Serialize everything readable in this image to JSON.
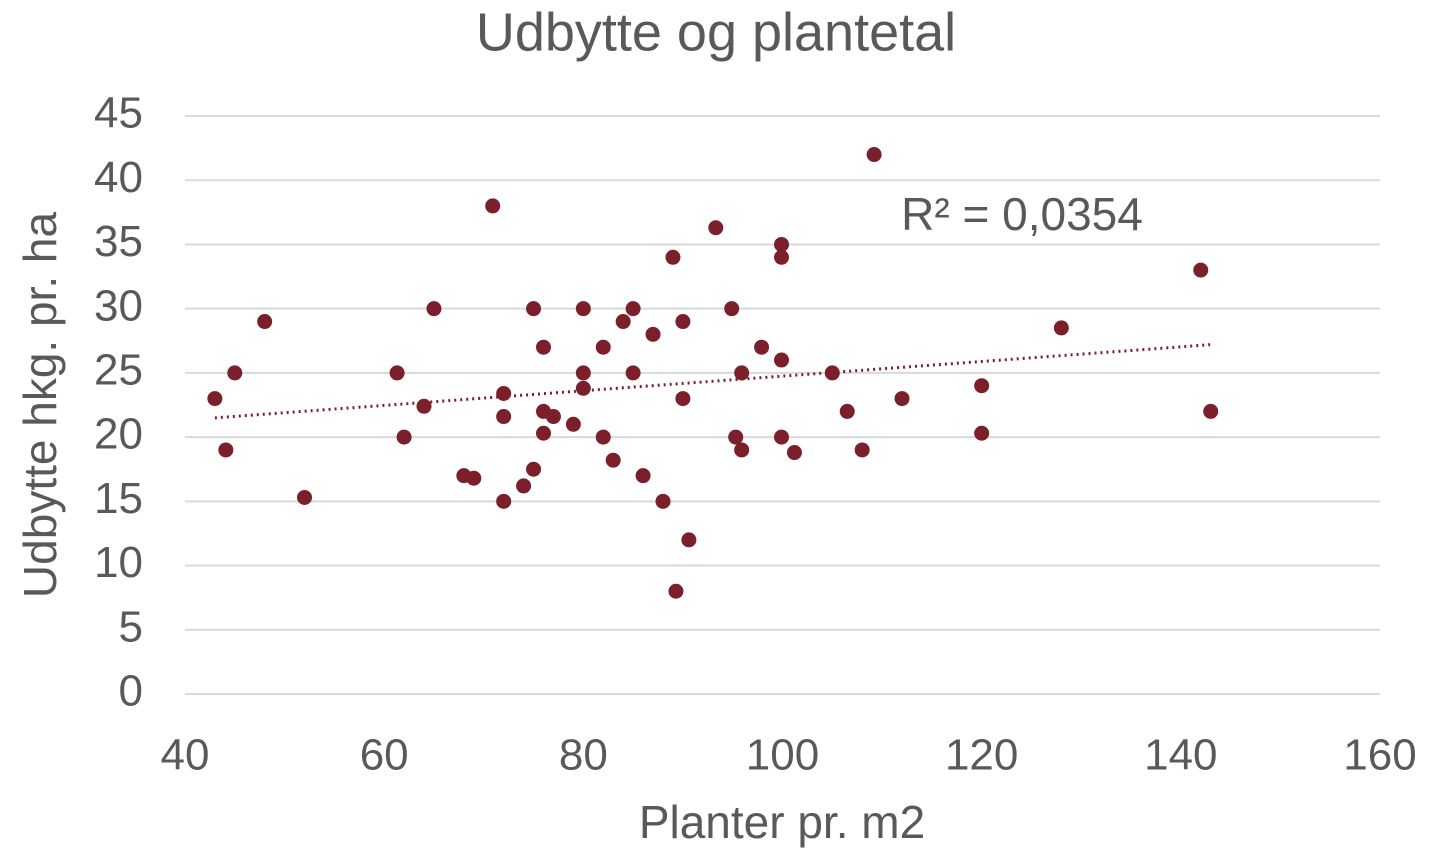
{
  "chart_data": {
    "type": "scatter",
    "title": "Udbytte og plantetal",
    "x_label": "Planter pr. m2",
    "y_label": "Udbytte hkg. pr. ha",
    "annotation": "R² = 0,0354",
    "color": "#7b1f2a",
    "x": [
      43,
      44.1,
      45,
      48,
      52,
      61.3,
      62,
      64,
      65,
      68,
      69,
      70.9,
      72,
      72,
      72,
      74,
      75,
      75,
      76,
      76,
      76,
      77,
      79,
      80,
      80,
      80,
      82,
      82,
      83,
      84,
      85,
      85,
      86,
      87,
      88,
      89,
      89.3,
      90,
      90,
      90.6,
      93.3,
      94.9,
      95.3,
      95.9,
      95.9,
      97.9,
      99.9,
      99.9,
      99.9,
      99.9,
      101.2,
      105,
      106.5,
      108,
      109.2,
      112,
      120,
      120,
      128,
      142,
      143
    ],
    "values": [
      23,
      19,
      25,
      29,
      15.3,
      25,
      20,
      22.4,
      30,
      17,
      16.8,
      38,
      23.4,
      21.6,
      15,
      16.2,
      30,
      17.5,
      27,
      22,
      20.3,
      21.6,
      21,
      30,
      25,
      23.8,
      27,
      20,
      18.2,
      29,
      30,
      25,
      17,
      28,
      15,
      34,
      8,
      29,
      23,
      12,
      36.3,
      30,
      20,
      25,
      19,
      27,
      35,
      34,
      26,
      20,
      18.8,
      25,
      22,
      19,
      42,
      23,
      24,
      20.3,
      28.5,
      33,
      22
    ],
    "trendline": {
      "x": [
        43,
        143
      ],
      "values": [
        21.5,
        27.2
      ]
    },
    "xlim": [
      40,
      160
    ],
    "xticks": [
      40,
      60,
      80,
      100,
      120,
      140,
      160
    ],
    "ylim": [
      0,
      45
    ],
    "yticks": [
      0,
      5,
      10,
      15,
      20,
      25,
      30,
      35,
      40,
      45
    ],
    "grid": true
  }
}
